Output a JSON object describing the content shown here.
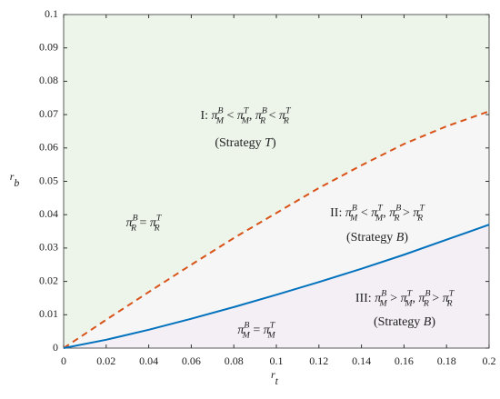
{
  "chart_data": {
    "type": "line",
    "x_label": {
      "base": "r",
      "sub": "t"
    },
    "y_label": {
      "base": "r",
      "sub": "b"
    },
    "x": [
      0,
      0.02,
      0.04,
      0.06,
      0.08,
      0.1,
      0.12,
      0.14,
      0.16,
      0.18,
      0.2
    ],
    "series": [
      {
        "name": "dashed",
        "color": "#d95319",
        "dash": true,
        "values": [
          0,
          0.0085,
          0.0168,
          0.025,
          0.033,
          0.0405,
          0.048,
          0.0548,
          0.0612,
          0.0665,
          0.071
        ]
      },
      {
        "name": "solid",
        "color": "#0072bd",
        "dash": false,
        "values": [
          0,
          0.0025,
          0.0055,
          0.0088,
          0.0123,
          0.016,
          0.0198,
          0.0238,
          0.028,
          0.0325,
          0.037
        ]
      }
    ],
    "region_colors": [
      "#edf5eb",
      "#f6f6f6",
      "#f4eef5"
    ],
    "xlim": [
      0,
      0.2
    ],
    "ylim": [
      0,
      0.1
    ],
    "xticks": [
      0,
      0.02,
      0.04,
      0.06,
      0.08,
      0.1,
      0.12,
      0.14,
      0.16,
      0.18,
      0.2
    ],
    "yticks": [
      0,
      0.01,
      0.02,
      0.03,
      0.04,
      0.05,
      0.06,
      0.07,
      0.08,
      0.09,
      0.1
    ],
    "annotations": [
      {
        "parts": [
          "I: ",
          {
            "base": "π",
            "sub": "M",
            "sup": "B"
          },
          " < ",
          {
            "base": "π",
            "sub": "M",
            "sup": "T"
          },
          ", ",
          {
            "base": "π",
            "sub": "R",
            "sup": "B"
          },
          " < ",
          {
            "base": "π",
            "sub": "R",
            "sup": "T"
          }
        ],
        "strategy": [
          "(Strategy ",
          "T",
          ")"
        ]
      },
      {
        "parts": [
          "II: ",
          {
            "base": "π",
            "sub": "M",
            "sup": "B"
          },
          " < ",
          {
            "base": "π",
            "sub": "M",
            "sup": "T"
          },
          ", ",
          {
            "base": "π",
            "sub": "R",
            "sup": "B"
          },
          " > ",
          {
            "base": "π",
            "sub": "R",
            "sup": "T"
          }
        ],
        "strategy": [
          "(Strategy ",
          "B",
          ")"
        ]
      },
      {
        "parts": [
          "III: ",
          {
            "base": "π",
            "sub": "M",
            "sup": "B"
          },
          " > ",
          {
            "base": "π",
            "sub": "M",
            "sup": "T"
          },
          ", ",
          {
            "base": "π",
            "sub": "R",
            "sup": "B"
          },
          " > ",
          {
            "base": "π",
            "sub": "R",
            "sup": "T"
          }
        ],
        "strategy": [
          "(Strategy ",
          "B",
          ")"
        ]
      },
      {
        "parts": [
          {
            "base": "π",
            "sub": "R",
            "sup": "B"
          },
          " = ",
          {
            "base": "π",
            "sub": "R",
            "sup": "T"
          }
        ],
        "series": 0
      },
      {
        "parts": [
          {
            "base": "π",
            "sub": "M",
            "sup": "B"
          },
          " = ",
          {
            "base": "π",
            "sub": "M",
            "sup": "T"
          }
        ],
        "series": 1
      }
    ]
  }
}
